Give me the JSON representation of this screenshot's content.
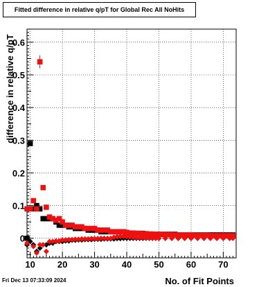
{
  "header": {
    "title": "Fitted difference in relative q/pT for Global Rec All NoHits"
  },
  "footer": {
    "date": "Fri Dec 13 07:33:09 2024"
  },
  "chart_data": {
    "type": "scatter",
    "title": "Fitted difference in relative q/pT for Global Rec All NoHits",
    "xlabel": "No. of Fit Points",
    "ylabel": "difference in relative q/pT",
    "xlim": [
      9,
      74
    ],
    "ylim": [
      -0.06,
      0.64
    ],
    "grid": true,
    "x_ticks": [
      10,
      20,
      30,
      40,
      50,
      60,
      70
    ],
    "y_ticks": [
      0,
      0.1,
      0.2,
      0.3,
      0.4,
      0.5,
      0.6
    ],
    "y_tick_labels": [
      "0",
      "0.1",
      "0.2",
      "0.3",
      "0.4",
      "0.5",
      "0.6"
    ],
    "series": [
      {
        "color": "#000000",
        "marker": "square",
        "points": [
          [
            9,
            0.0
          ],
          [
            10,
            0.29
          ],
          [
            11,
            0.09
          ],
          [
            12,
            0.1
          ],
          [
            13,
            0.09
          ],
          [
            14,
            0.06
          ],
          [
            15,
            0.06
          ],
          [
            16,
            0.06
          ],
          [
            17,
            0.06
          ],
          [
            18,
            0.05
          ],
          [
            19,
            0.04
          ],
          [
            20,
            0.04
          ],
          [
            21,
            0.04
          ],
          [
            22,
            0.035
          ],
          [
            23,
            0.035
          ],
          [
            24,
            0.03
          ],
          [
            25,
            0.03
          ],
          [
            26,
            0.03
          ],
          [
            27,
            0.03
          ],
          [
            28,
            0.025
          ],
          [
            29,
            0.025
          ],
          [
            30,
            0.025
          ],
          [
            31,
            0.025
          ],
          [
            32,
            0.02
          ],
          [
            33,
            0.02
          ],
          [
            34,
            0.02
          ],
          [
            35,
            0.02
          ],
          [
            36,
            0.02
          ],
          [
            37,
            0.02
          ],
          [
            38,
            0.02
          ],
          [
            39,
            0.02
          ],
          [
            40,
            0.015
          ],
          [
            41,
            0.015
          ],
          [
            42,
            0.015
          ],
          [
            43,
            0.015
          ],
          [
            44,
            0.015
          ],
          [
            45,
            0.015
          ],
          [
            46,
            0.012
          ],
          [
            47,
            0.012
          ],
          [
            48,
            0.012
          ],
          [
            49,
            0.012
          ],
          [
            50,
            0.012
          ],
          [
            51,
            0.012
          ],
          [
            52,
            0.012
          ],
          [
            53,
            0.012
          ],
          [
            54,
            0.012
          ],
          [
            55,
            0.012
          ],
          [
            56,
            0.01
          ],
          [
            57,
            0.01
          ],
          [
            58,
            0.01
          ],
          [
            59,
            0.01
          ],
          [
            60,
            0.01
          ],
          [
            61,
            0.01
          ],
          [
            62,
            0.01
          ],
          [
            63,
            0.01
          ],
          [
            64,
            0.01
          ],
          [
            65,
            0.01
          ],
          [
            66,
            0.01
          ],
          [
            67,
            0.01
          ],
          [
            68,
            0.01
          ],
          [
            69,
            0.01
          ],
          [
            70,
            0.01
          ],
          [
            71,
            0.01
          ],
          [
            72,
            0.01
          ],
          [
            73,
            0.01
          ]
        ]
      },
      {
        "color": "#000000",
        "marker": "diamond",
        "points": [
          [
            9,
            -0.02
          ],
          [
            10,
            -0.01
          ],
          [
            11,
            -0.02
          ],
          [
            12,
            -0.04
          ],
          [
            13,
            -0.03
          ],
          [
            14,
            -0.02
          ],
          [
            15,
            -0.02
          ],
          [
            16,
            -0.015
          ],
          [
            17,
            -0.015
          ],
          [
            18,
            -0.01
          ],
          [
            19,
            -0.01
          ],
          [
            20,
            -0.01
          ],
          [
            21,
            -0.008
          ],
          [
            22,
            -0.008
          ],
          [
            23,
            -0.006
          ],
          [
            24,
            -0.006
          ],
          [
            25,
            -0.005
          ],
          [
            26,
            -0.005
          ],
          [
            27,
            -0.004
          ],
          [
            28,
            -0.004
          ],
          [
            29,
            -0.004
          ],
          [
            30,
            -0.003
          ],
          [
            31,
            -0.003
          ],
          [
            32,
            -0.003
          ],
          [
            33,
            -0.002
          ],
          [
            34,
            -0.002
          ],
          [
            35,
            -0.002
          ],
          [
            36,
            -0.002
          ],
          [
            37,
            -0.001
          ],
          [
            38,
            -0.001
          ],
          [
            39,
            0.0
          ],
          [
            40,
            0.0
          ],
          [
            41,
            0.0
          ],
          [
            42,
            0.0
          ],
          [
            43,
            0.0
          ],
          [
            44,
            0.0
          ],
          [
            45,
            0.0
          ],
          [
            46,
            0.0
          ],
          [
            47,
            0.0
          ],
          [
            48,
            0.0
          ],
          [
            49,
            0.0
          ],
          [
            50,
            0.0
          ],
          [
            52,
            0.0
          ],
          [
            54,
            0.0
          ],
          [
            56,
            0.0
          ],
          [
            58,
            0.0
          ],
          [
            60,
            0.0
          ],
          [
            62,
            0.0
          ],
          [
            64,
            0.0
          ],
          [
            66,
            0.0
          ],
          [
            68,
            0.0
          ],
          [
            70,
            0.0
          ],
          [
            72,
            0.0
          ]
        ]
      },
      {
        "color": "#ee1111",
        "marker": "square",
        "points": [
          [
            9,
            0.09
          ],
          [
            10,
            0.09
          ],
          [
            11,
            0.115
          ],
          [
            12,
            0.09
          ],
          [
            13,
            0.54
          ],
          [
            14,
            0.155
          ],
          [
            15,
            0.095
          ],
          [
            16,
            0.065
          ],
          [
            17,
            0.06
          ],
          [
            18,
            0.055
          ],
          [
            19,
            0.06
          ],
          [
            20,
            0.05
          ],
          [
            21,
            0.04
          ],
          [
            22,
            0.04
          ],
          [
            23,
            0.04
          ],
          [
            24,
            0.035
          ],
          [
            25,
            0.035
          ],
          [
            26,
            0.035
          ],
          [
            27,
            0.03
          ],
          [
            28,
            0.03
          ],
          [
            29,
            0.03
          ],
          [
            30,
            0.03
          ],
          [
            31,
            0.025
          ],
          [
            32,
            0.025
          ],
          [
            33,
            0.025
          ],
          [
            34,
            0.025
          ],
          [
            35,
            0.02
          ],
          [
            36,
            0.02
          ],
          [
            37,
            0.02
          ],
          [
            38,
            0.02
          ],
          [
            39,
            0.02
          ],
          [
            40,
            0.018
          ],
          [
            41,
            0.016
          ],
          [
            42,
            0.016
          ],
          [
            43,
            0.015
          ],
          [
            44,
            0.015
          ],
          [
            45,
            0.014
          ],
          [
            46,
            0.014
          ],
          [
            47,
            0.013
          ],
          [
            48,
            0.013
          ],
          [
            49,
            0.012
          ],
          [
            50,
            0.012
          ],
          [
            51,
            0.012
          ],
          [
            52,
            0.011
          ],
          [
            53,
            0.011
          ],
          [
            54,
            0.011
          ],
          [
            55,
            0.01
          ],
          [
            56,
            0.01
          ],
          [
            57,
            0.01
          ],
          [
            58,
            0.01
          ],
          [
            59,
            0.01
          ],
          [
            60,
            0.01
          ],
          [
            61,
            0.009
          ],
          [
            62,
            0.009
          ],
          [
            63,
            0.009
          ],
          [
            64,
            0.009
          ],
          [
            65,
            0.009
          ],
          [
            66,
            0.008
          ],
          [
            67,
            0.008
          ],
          [
            68,
            0.008
          ],
          [
            69,
            0.008
          ],
          [
            70,
            0.008
          ],
          [
            71,
            0.008
          ],
          [
            72,
            0.008
          ],
          [
            73,
            0.008
          ]
        ]
      },
      {
        "color": "#ee1111",
        "marker": "diamond",
        "points": [
          [
            9,
            -0.015
          ],
          [
            11,
            -0.025
          ],
          [
            12,
            -0.045
          ],
          [
            13,
            -0.02
          ],
          [
            14,
            -0.02
          ],
          [
            15,
            -0.04
          ],
          [
            16,
            -0.01
          ],
          [
            17,
            -0.01
          ],
          [
            18,
            -0.008
          ],
          [
            19,
            -0.008
          ],
          [
            20,
            -0.005
          ],
          [
            21,
            -0.005
          ],
          [
            22,
            -0.004
          ],
          [
            23,
            -0.004
          ],
          [
            24,
            -0.003
          ],
          [
            25,
            -0.003
          ],
          [
            26,
            -0.002
          ],
          [
            27,
            -0.002
          ],
          [
            28,
            -0.002
          ],
          [
            29,
            -0.001
          ],
          [
            30,
            -0.001
          ],
          [
            31,
            -0.001
          ],
          [
            32,
            0.0
          ],
          [
            33,
            0.0
          ],
          [
            34,
            0.0
          ],
          [
            35,
            0.0
          ],
          [
            36,
            0.003
          ],
          [
            37,
            0.005
          ],
          [
            38,
            0.006
          ],
          [
            39,
            0.006
          ],
          [
            40,
            0.005
          ],
          [
            41,
            0.004
          ],
          [
            42,
            0.003
          ],
          [
            43,
            0.002
          ],
          [
            44,
            0.002
          ],
          [
            45,
            0.002
          ],
          [
            46,
            0.001
          ],
          [
            47,
            0.001
          ],
          [
            48,
            0.001
          ],
          [
            49,
            0.0
          ],
          [
            50,
            0.0
          ],
          [
            52,
            0.0
          ],
          [
            54,
            0.0
          ],
          [
            56,
            0.0
          ],
          [
            58,
            0.0
          ],
          [
            60,
            0.0
          ],
          [
            62,
            0.0
          ],
          [
            64,
            0.0
          ],
          [
            66,
            0.0
          ],
          [
            68,
            0.0
          ],
          [
            70,
            0.0
          ],
          [
            72,
            0.0
          ],
          [
            73,
            0.0
          ]
        ]
      }
    ]
  }
}
